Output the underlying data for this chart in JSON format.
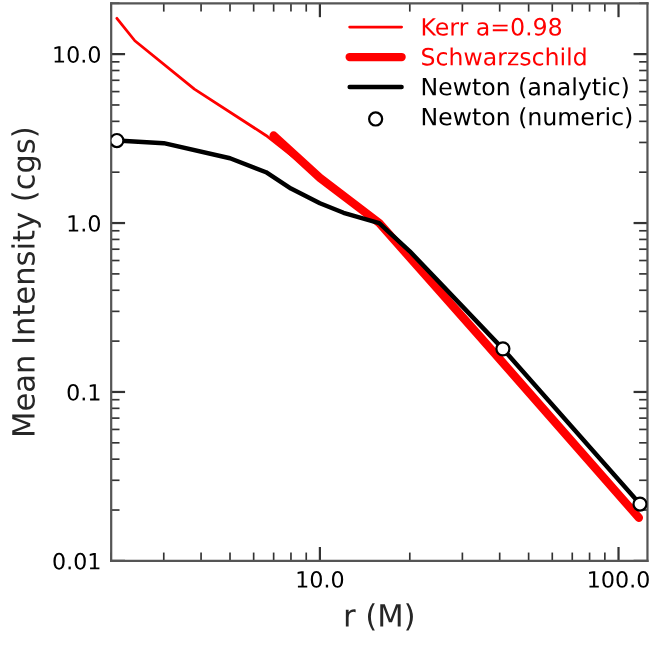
{
  "chart_data": {
    "type": "line",
    "xlabel": "r (M)",
    "ylabel": "Mean Intensity (cgs)",
    "log": "xy",
    "xlim": [
      2,
      125
    ],
    "ylim": [
      0.01,
      20
    ],
    "xticks": [
      {
        "value": 10,
        "label": "10.0"
      },
      {
        "value": 100,
        "label": "100.0"
      }
    ],
    "yticks": [
      {
        "value": 0.01,
        "label": "0.01"
      },
      {
        "value": 0.1,
        "label": "0.1"
      },
      {
        "value": 1,
        "label": "1.0"
      },
      {
        "value": 10,
        "label": "10.0"
      }
    ],
    "grid": false,
    "legend": "top right",
    "series": [
      {
        "name": "Kerr a=0.98",
        "color": "#ff0000",
        "x": [
          2.09,
          2.4,
          3.8,
          6.6,
          10,
          15.8,
          34,
          117
        ],
        "values": [
          16.3,
          12,
          6.2,
          3.3,
          1.85,
          1.0,
          0.217,
          0.018
        ]
      },
      {
        "name": "Schwarzschild",
        "color": "#ff0000",
        "x": [
          7.0,
          10,
          15.8,
          34,
          117
        ],
        "values": [
          3.3,
          1.85,
          1.0,
          0.217,
          0.018
        ]
      },
      {
        "name": "Newton (analytic)",
        "color": "#000000",
        "x": [
          2.09,
          3,
          5,
          6.6,
          8,
          10,
          12,
          15.8,
          20,
          25,
          41,
          118
        ],
        "values": [
          3.08,
          2.97,
          2.42,
          2.0,
          1.6,
          1.31,
          1.15,
          1.0,
          0.68,
          0.45,
          0.18,
          0.0217
        ]
      },
      {
        "name": "Newton (numeric)",
        "color": "#000000",
        "type": "scatter",
        "marker": "circle",
        "x": [
          2.09,
          41,
          118
        ],
        "values": [
          3.08,
          0.18,
          0.0217
        ]
      }
    ]
  }
}
